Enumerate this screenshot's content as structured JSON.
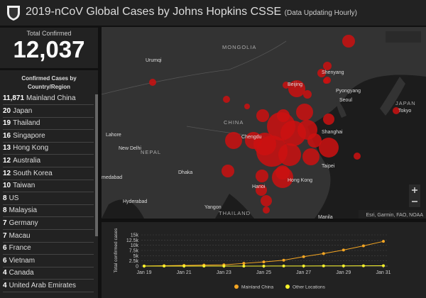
{
  "header": {
    "title": "2019-nCoV Global Cases by Johns Hopkins CSSE",
    "subtitle": "(Data Updating Hourly)"
  },
  "total": {
    "label": "Total Confirmed",
    "value": "12,037"
  },
  "list": {
    "heading": "Confirmed Cases by Country/Region",
    "rows": [
      [
        "11,871",
        "Mainland China"
      ],
      [
        "20",
        "Japan"
      ],
      [
        "19",
        "Thailand"
      ],
      [
        "16",
        "Singapore"
      ],
      [
        "13",
        "Hong Kong"
      ],
      [
        "12",
        "Australia"
      ],
      [
        "12",
        "South Korea"
      ],
      [
        "10",
        "Taiwan"
      ],
      [
        "8",
        "US"
      ],
      [
        "8",
        "Malaysia"
      ],
      [
        "7",
        "Germany"
      ],
      [
        "7",
        "Macau"
      ],
      [
        "6",
        "France"
      ],
      [
        "6",
        "Vietnam"
      ],
      [
        "4",
        "Canada"
      ],
      [
        "4",
        "United Arab Emirates"
      ]
    ]
  },
  "map": {
    "labels": [
      "MONGOLIA",
      "Urumqi",
      "CHINA",
      "Beijing",
      "Shenyang",
      "Pyongyang",
      "Seoul",
      "JAPAN",
      "Tokyo",
      "Shanghai",
      "Chengdu",
      "Taipei",
      "Hong Kong",
      "Hanoi",
      "Dhaka",
      "New Delhi",
      "Lahore",
      "NEPAL",
      "Yangon",
      "THAILAND",
      "Hyderabad",
      "medabad",
      "Manila"
    ],
    "attribution": "Esri, Garmin, FAO, NOAA"
  },
  "chart_data": {
    "type": "line",
    "y_label": "Total confirmed cases",
    "categories": [
      "Jan 19",
      null,
      "Jan 21",
      null,
      "Jan 23",
      null,
      "Jan 25",
      null,
      "Jan 27",
      null,
      "Jan 29",
      null,
      "Jan 31"
    ],
    "series": [
      {
        "name": "Mainland China",
        "color": "#f5a623",
        "values": [
          50,
          150,
          300,
          450,
          600,
          1300,
          2000,
          2800,
          4500,
          6000,
          7700,
          9700,
          11871
        ]
      },
      {
        "name": "Other Locations",
        "color": "#f8f32b",
        "values": [
          0,
          0,
          1,
          3,
          5,
          10,
          20,
          40,
          60,
          80,
          100,
          130,
          166
        ]
      }
    ],
    "ylim": [
      0,
      15000
    ],
    "yticks": [
      0,
      {
        "value": 2500,
        "label": "2.5k"
      },
      {
        "value": 5000,
        "label": "5k"
      },
      {
        "value": 7500,
        "label": "7.5k"
      },
      {
        "value": 10000,
        "label": "10k"
      },
      {
        "value": 12500,
        "label": "12.5k"
      },
      {
        "value": 15000,
        "label": "15k"
      }
    ],
    "grid": true
  }
}
